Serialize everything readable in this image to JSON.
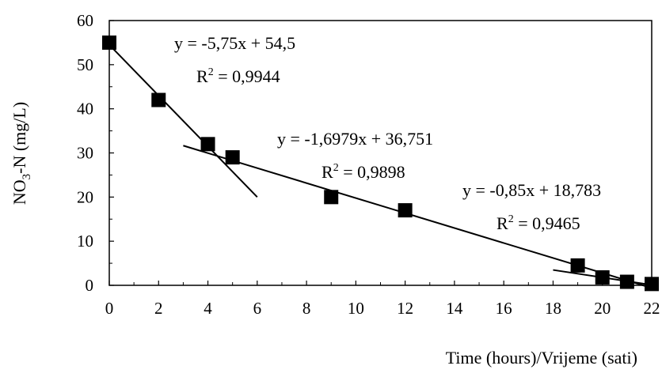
{
  "chart_data": {
    "type": "scatter",
    "title": "",
    "xlabel": "Time (hours)/Vrijeme (sati)",
    "ylabel": "NO3-N (mg/L)",
    "ylabel_parts": {
      "base": "NO",
      "sub": "3",
      "rest": "-N (mg/L)"
    },
    "xlim": [
      0,
      22
    ],
    "ylim": [
      0,
      60
    ],
    "xticks": [
      0,
      2,
      4,
      6,
      8,
      10,
      12,
      14,
      16,
      18,
      20,
      22
    ],
    "yticks": [
      0,
      10,
      20,
      30,
      40,
      50,
      60
    ],
    "grid": false,
    "legend": "none",
    "colors": {
      "marker": "#000000",
      "line": "#000000"
    },
    "points": [
      {
        "x": 0,
        "y": 55
      },
      {
        "x": 2,
        "y": 42
      },
      {
        "x": 4,
        "y": 32
      },
      {
        "x": 5,
        "y": 29
      },
      {
        "x": 9,
        "y": 20
      },
      {
        "x": 12,
        "y": 17
      },
      {
        "x": 19,
        "y": 4.5
      },
      {
        "x": 20,
        "y": 1.8
      },
      {
        "x": 21,
        "y": 0.8
      },
      {
        "x": 22,
        "y": 0.3
      }
    ],
    "trendlines": [
      {
        "slope": -5.75,
        "intercept": 54.5,
        "x_range": [
          0,
          6
        ],
        "equation": "y = -5,75x + 54,5",
        "r2_label": "R",
        "r2_sup": "2",
        "r2_value": " = 0,9944"
      },
      {
        "slope": -1.6979,
        "intercept": 36.751,
        "x_range": [
          3,
          22
        ],
        "equation": "y = -1,6979x + 36,751",
        "r2_label": "R",
        "r2_sup": "2",
        "r2_value": " = 0,9898"
      },
      {
        "slope": -0.85,
        "intercept": 18.783,
        "x_range": [
          18,
          22
        ],
        "equation": "y = -0,85x + 18,783",
        "r2_label": "R",
        "r2_sup": "2",
        "r2_value": " = 0,9465"
      }
    ]
  }
}
